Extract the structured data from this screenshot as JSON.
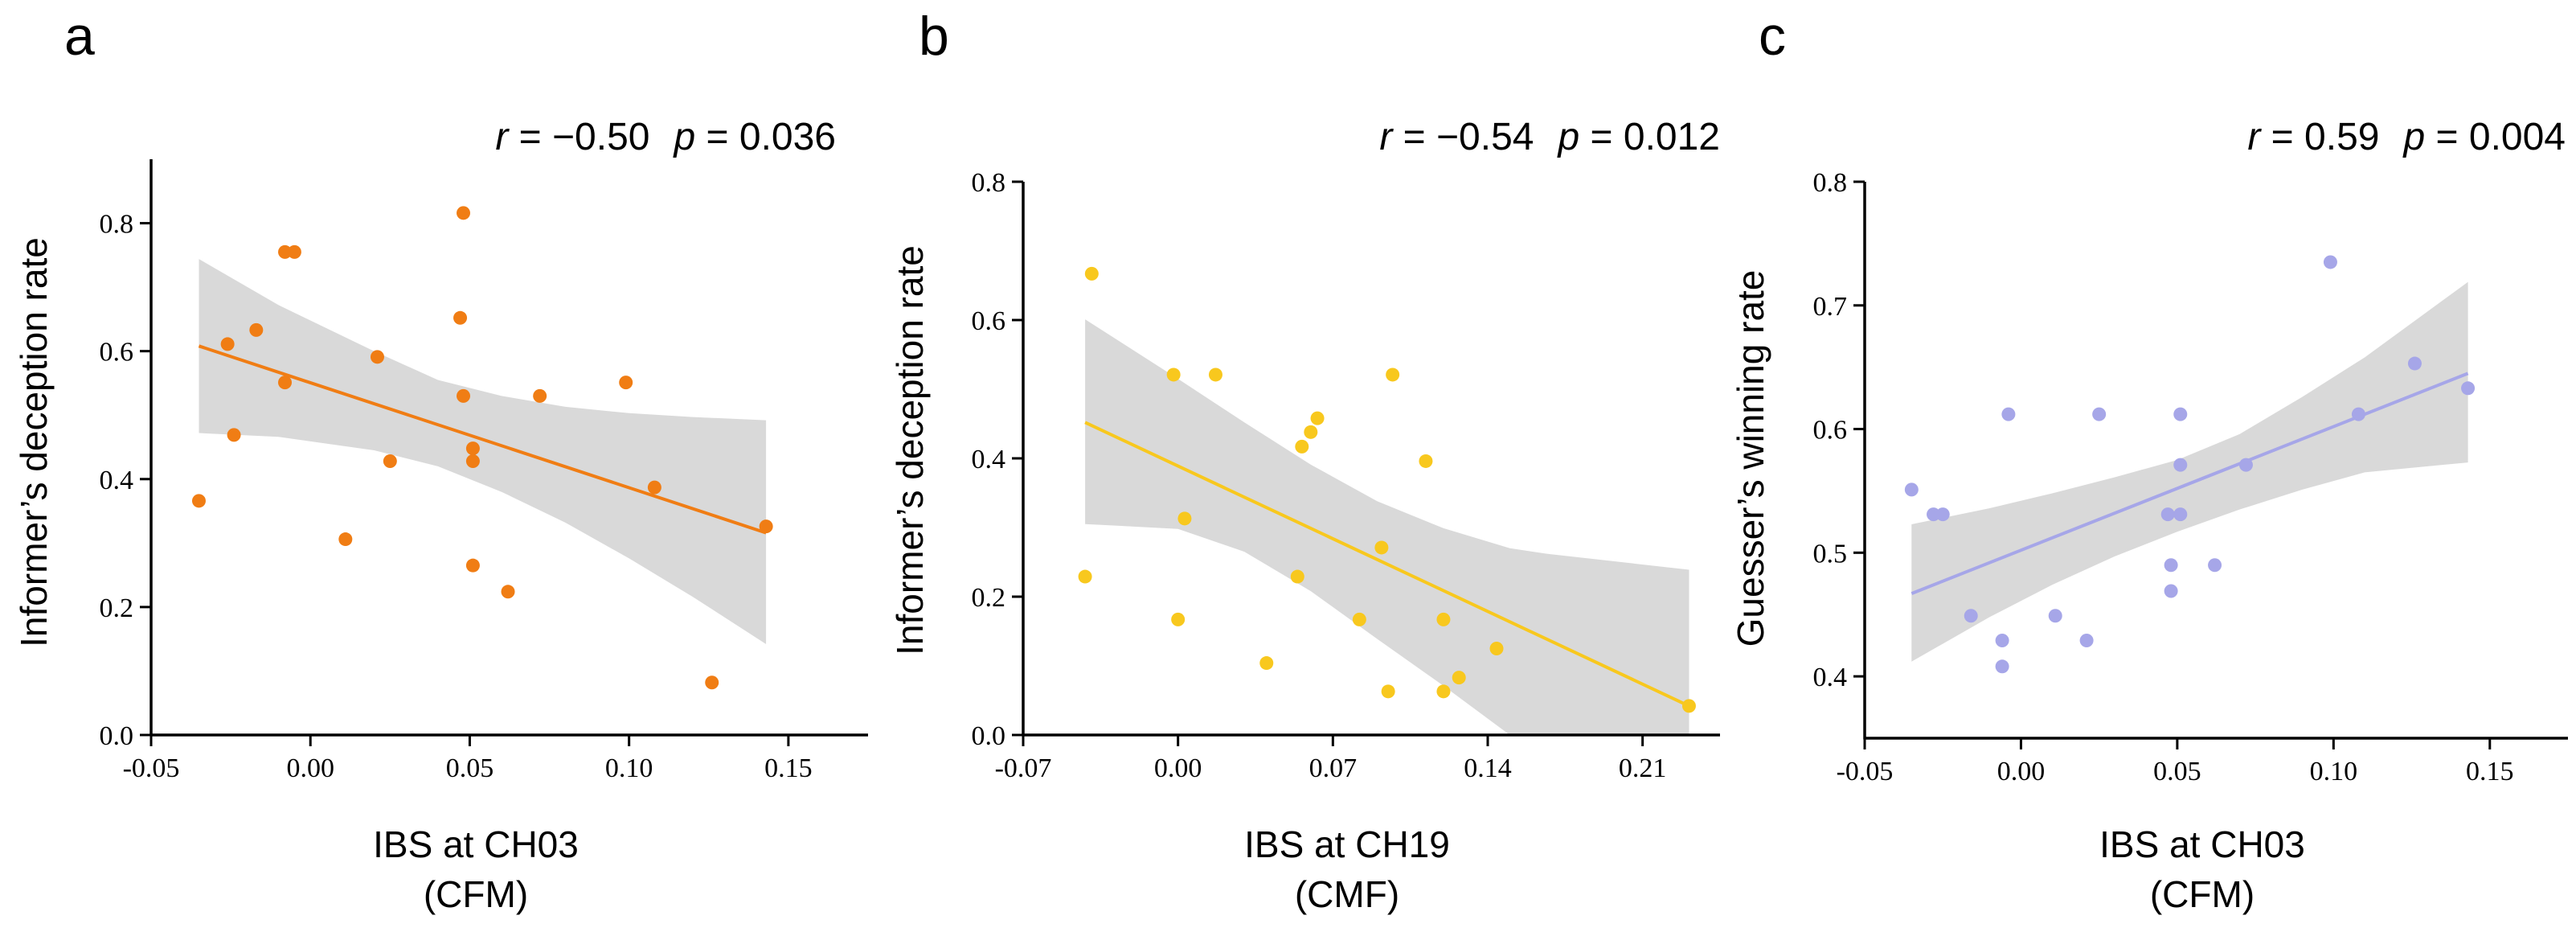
{
  "chart_data": [
    {
      "type": "scatter",
      "panel": "a",
      "annotation_r_symbol": "r",
      "annotation_r_value": " = −0.50",
      "annotation_p_symbol": "p",
      "annotation_p_value": " = 0.036",
      "xlabel_line1": "IBS at CH03",
      "xlabel_line2": "(CFM)",
      "ylabel": "Informer’s deception rate",
      "xlim": [
        -0.05,
        0.175
      ],
      "ylim": [
        0.0,
        0.9
      ],
      "xticks": [
        -0.05,
        0.0,
        0.05,
        0.1,
        0.15
      ],
      "xtick_labels": [
        "-0.05",
        "0.00",
        "0.05",
        "0.10",
        "0.15"
      ],
      "yticks": [
        0.0,
        0.2,
        0.4,
        0.6,
        0.8
      ],
      "ytick_labels": [
        "0.0",
        "0.2",
        "0.4",
        "0.6",
        "0.8"
      ],
      "color": "#f07d14",
      "x": [
        -0.035,
        -0.026,
        -0.024,
        -0.017,
        -0.008,
        -0.008,
        -0.005,
        0.011,
        0.021,
        0.025,
        0.047,
        0.048,
        0.048,
        0.051,
        0.051,
        0.051,
        0.062,
        0.072,
        0.099,
        0.108,
        0.126,
        0.143
      ],
      "y": [
        0.366,
        0.611,
        0.469,
        0.633,
        0.551,
        0.755,
        0.755,
        0.306,
        0.591,
        0.428,
        0.652,
        0.53,
        0.816,
        0.448,
        0.428,
        0.265,
        0.224,
        0.53,
        0.551,
        0.387,
        0.082,
        0.326
      ],
      "fit_line": {
        "x": [
          -0.035,
          0.143
        ],
        "y": [
          0.608,
          0.316
        ]
      },
      "ci_band": {
        "x": [
          -0.035,
          -0.01,
          0.02,
          0.04,
          0.06,
          0.08,
          0.1,
          0.12,
          0.143
        ],
        "lower": [
          0.472,
          0.466,
          0.445,
          0.42,
          0.38,
          0.332,
          0.276,
          0.216,
          0.142
        ],
        "upper": [
          0.744,
          0.672,
          0.6,
          0.555,
          0.53,
          0.513,
          0.503,
          0.497,
          0.492
        ]
      }
    },
    {
      "type": "scatter",
      "panel": "b",
      "annotation_r_symbol": "r",
      "annotation_r_value": " = −0.54",
      "annotation_p_symbol": "p",
      "annotation_p_value": " = 0.012",
      "xlabel_line1": "IBS at CH19",
      "xlabel_line2": "(CMF)",
      "ylabel": "Informer’s deception rate",
      "xlim": [
        -0.07,
        0.245
      ],
      "ylim": [
        0.0,
        0.8
      ],
      "xticks": [
        -0.07,
        0.0,
        0.07,
        0.14,
        0.21
      ],
      "xtick_labels": [
        "-0.07",
        "0.00",
        "0.07",
        "0.14",
        "0.21"
      ],
      "yticks": [
        0.0,
        0.2,
        0.4,
        0.6,
        0.8
      ],
      "ytick_labels": [
        "0.0",
        "0.2",
        "0.4",
        "0.6",
        "0.8"
      ],
      "color": "#f8c81e",
      "x": [
        -0.042,
        -0.039,
        -0.002,
        0.0,
        0.003,
        0.017,
        0.04,
        0.054,
        0.056,
        0.06,
        0.063,
        0.082,
        0.092,
        0.095,
        0.097,
        0.112,
        0.12,
        0.12,
        0.127,
        0.144,
        0.231
      ],
      "y": [
        0.229,
        0.667,
        0.521,
        0.167,
        0.313,
        0.521,
        0.104,
        0.229,
        0.417,
        0.438,
        0.458,
        0.167,
        0.271,
        0.063,
        0.521,
        0.396,
        0.167,
        0.063,
        0.083,
        0.125,
        0.042
      ],
      "fit_line": {
        "x": [
          -0.042,
          0.231
        ],
        "y": [
          0.452,
          0.042
        ]
      },
      "ci_band": {
        "x": [
          -0.042,
          0.0,
          0.03,
          0.06,
          0.09,
          0.12,
          0.15,
          0.167,
          0.231
        ],
        "lower": [
          0.305,
          0.298,
          0.265,
          0.208,
          0.139,
          0.071,
          0.0,
          0.0,
          0.0
        ],
        "upper": [
          0.601,
          0.515,
          0.452,
          0.391,
          0.338,
          0.299,
          0.27,
          0.262,
          0.239
        ]
      }
    },
    {
      "type": "scatter",
      "panel": "c",
      "annotation_r_symbol": "r",
      "annotation_r_value": " = 0.59",
      "annotation_p_symbol": "p",
      "annotation_p_value": " = 0.004",
      "xlabel_line1": "IBS at CH03",
      "xlabel_line2": "(CFM)",
      "ylabel": "Guesser’s winning rate",
      "xlim": [
        -0.05,
        0.175
      ],
      "ylim": [
        0.35,
        0.8
      ],
      "xticks": [
        -0.05,
        0.0,
        0.05,
        0.1,
        0.15
      ],
      "xtick_labels": [
        "-0.05",
        "0.00",
        "0.05",
        "0.10",
        "0.15"
      ],
      "yticks": [
        0.4,
        0.5,
        0.6,
        0.7,
        0.8
      ],
      "ytick_labels": [
        "0.4",
        "0.5",
        "0.6",
        "0.7",
        "0.8"
      ],
      "color": "#a6a6e8",
      "x": [
        -0.035,
        -0.028,
        -0.025,
        -0.016,
        -0.006,
        -0.006,
        -0.004,
        0.011,
        0.021,
        0.025,
        0.047,
        0.048,
        0.048,
        0.051,
        0.051,
        0.051,
        0.062,
        0.072,
        0.099,
        0.108,
        0.126,
        0.143
      ],
      "y": [
        0.551,
        0.531,
        0.531,
        0.449,
        0.429,
        0.408,
        0.612,
        0.449,
        0.429,
        0.612,
        0.531,
        0.49,
        0.469,
        0.612,
        0.571,
        0.531,
        0.49,
        0.571,
        0.735,
        0.612,
        0.653,
        0.633
      ],
      "fit_line": {
        "x": [
          -0.035,
          0.143
        ],
        "y": [
          0.467,
          0.645
        ]
      },
      "ci_band": {
        "x": [
          -0.035,
          -0.01,
          0.01,
          0.03,
          0.05,
          0.07,
          0.09,
          0.11,
          0.143
        ],
        "lower": [
          0.412,
          0.448,
          0.474,
          0.497,
          0.517,
          0.535,
          0.551,
          0.565,
          0.573
        ],
        "upper": [
          0.523,
          0.536,
          0.548,
          0.561,
          0.575,
          0.596,
          0.626,
          0.658,
          0.719
        ]
      }
    }
  ]
}
